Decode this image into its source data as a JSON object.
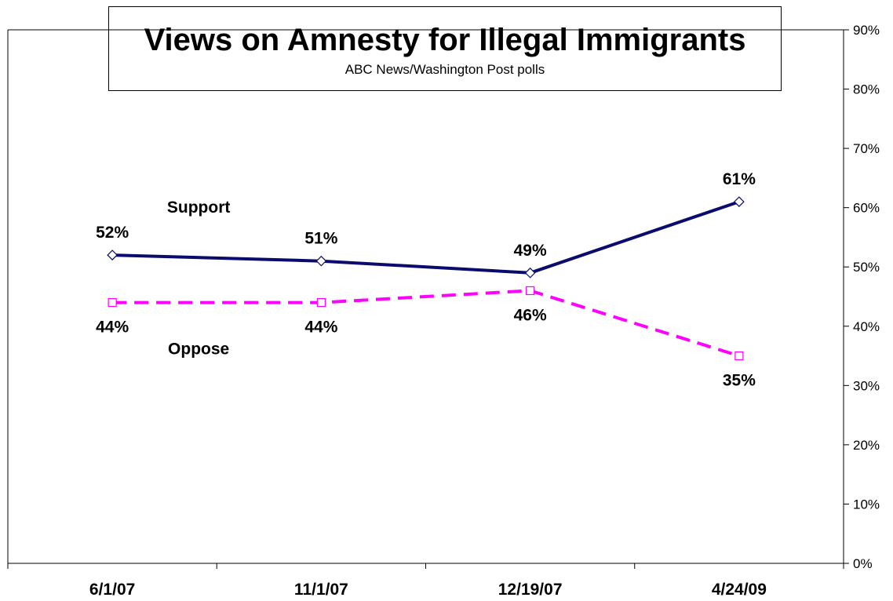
{
  "chart_data": {
    "type": "line",
    "title": "Views on Amnesty for Illegal Immigrants",
    "subtitle": "ABC News/Washington Post polls",
    "categories": [
      "6/1/07",
      "11/1/07",
      "12/19/07",
      "4/24/09"
    ],
    "series": [
      {
        "name": "Support",
        "values": [
          52,
          51,
          49,
          61
        ],
        "labels": [
          "52%",
          "51%",
          "49%",
          "61%"
        ],
        "color": "#0b0b6e",
        "style": "solid",
        "marker": "diamond"
      },
      {
        "name": "Oppose",
        "values": [
          44,
          44,
          46,
          35
        ],
        "labels": [
          "44%",
          "44%",
          "46%",
          "35%"
        ],
        "color": "#ff00ff",
        "style": "dashed",
        "marker": "square"
      }
    ],
    "y_axis": {
      "position": "right",
      "range": [
        0,
        90
      ],
      "ticks": [
        "0%",
        "10%",
        "20%",
        "30%",
        "40%",
        "50%",
        "60%",
        "70%",
        "80%",
        "90%"
      ]
    },
    "grid": false,
    "legend": "inline labels"
  }
}
